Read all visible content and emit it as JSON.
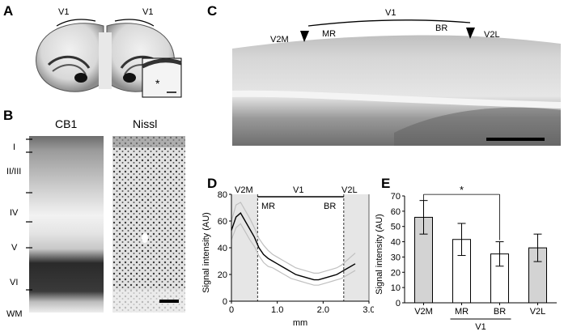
{
  "panels": {
    "A": {
      "letter": "A",
      "v1_left": "V1",
      "v1_right": "V1",
      "inset_marker": "*"
    },
    "B": {
      "letter": "B",
      "cb1_title": "CB1",
      "nissl_title": "Nissl",
      "layers": [
        "I",
        "II/III",
        "IV",
        "V",
        "VI",
        "WM"
      ]
    },
    "C": {
      "letter": "C",
      "v1": "V1",
      "v2m": "V2M",
      "mr": "MR",
      "br": "BR",
      "v2l": "V2L"
    },
    "D": {
      "letter": "D",
      "top_labels": {
        "v2m": "V2M",
        "v1": "V1",
        "v2l": "V2L",
        "mr": "MR",
        "br": "BR"
      },
      "ylabel": "Signal intensity (AU)",
      "xlabel": "mm"
    },
    "E": {
      "letter": "E",
      "ylabel": "Signal intensity (AU)",
      "group_label": "V1",
      "sig_marker": "*"
    }
  },
  "chart_data": [
    {
      "type": "line",
      "xlabel": "mm",
      "ylabel": "Signal intensity (AU)",
      "xlim": [
        0,
        3.0
      ],
      "ylim": [
        0,
        80
      ],
      "xticks": [
        "0",
        "1.0",
        "2.0",
        "3.0"
      ],
      "yticks": [
        "0",
        "20",
        "40",
        "60",
        "80"
      ],
      "shaded_regions": [
        [
          0,
          0.57
        ],
        [
          2.45,
          3.0
        ]
      ],
      "dashed_lines": [
        0.57,
        2.45
      ],
      "series": [
        {
          "color": "#000000",
          "x": [
            0,
            0.1,
            0.2,
            0.3,
            0.4,
            0.5,
            0.6,
            0.7,
            0.8,
            0.9,
            1.0,
            1.1,
            1.2,
            1.3,
            1.4,
            1.5,
            1.6,
            1.7,
            1.8,
            1.9,
            2.0,
            2.1,
            2.2,
            2.3,
            2.4,
            2.5,
            2.6,
            2.7
          ],
          "y": [
            53,
            63,
            66,
            60,
            54,
            48,
            40,
            35,
            32,
            30,
            28,
            26,
            24,
            22,
            20,
            19,
            18,
            17,
            16,
            16,
            17,
            18,
            19,
            20,
            22,
            24,
            26,
            28
          ]
        },
        {
          "color": "#c0c0c0",
          "x": [
            0,
            0.1,
            0.2,
            0.3,
            0.4,
            0.5,
            0.6,
            0.7,
            0.8,
            0.9,
            1.0,
            1.1,
            1.2,
            1.3,
            1.4,
            1.5,
            1.6,
            1.7,
            1.8,
            1.9,
            2.0,
            2.1,
            2.2,
            2.3,
            2.4,
            2.5,
            2.6,
            2.7
          ],
          "y": [
            60,
            72,
            74,
            68,
            62,
            55,
            47,
            42,
            38,
            35,
            33,
            31,
            29,
            27,
            25,
            24,
            23,
            22,
            21,
            21,
            22,
            23,
            24,
            25,
            27,
            30,
            33,
            36
          ]
        },
        {
          "color": "#c0c0c0",
          "x": [
            0,
            0.1,
            0.2,
            0.3,
            0.4,
            0.5,
            0.6,
            0.7,
            0.8,
            0.9,
            1.0,
            1.1,
            1.2,
            1.3,
            1.4,
            1.5,
            1.6,
            1.7,
            1.8,
            1.9,
            2.0,
            2.1,
            2.2,
            2.3,
            2.4,
            2.5,
            2.6,
            2.7
          ],
          "y": [
            46,
            55,
            58,
            52,
            46,
            41,
            34,
            29,
            26,
            25,
            23,
            21,
            19,
            17,
            16,
            15,
            14,
            13,
            12,
            12,
            13,
            14,
            15,
            16,
            17,
            19,
            21,
            23
          ]
        }
      ]
    },
    {
      "type": "bar",
      "ylabel": "Signal intensity (AU)",
      "ylim": [
        0,
        70
      ],
      "yticks": [
        "0",
        "10",
        "20",
        "30",
        "40",
        "50",
        "60",
        "70"
      ],
      "categories": [
        "V2M",
        "MR",
        "BR",
        "V2L"
      ],
      "values": [
        56,
        41.5,
        32,
        36
      ],
      "errors": [
        11,
        10.5,
        8,
        9
      ],
      "colors": [
        "#d3d3d3",
        "#ffffff",
        "#ffffff",
        "#d3d3d3"
      ]
    }
  ]
}
